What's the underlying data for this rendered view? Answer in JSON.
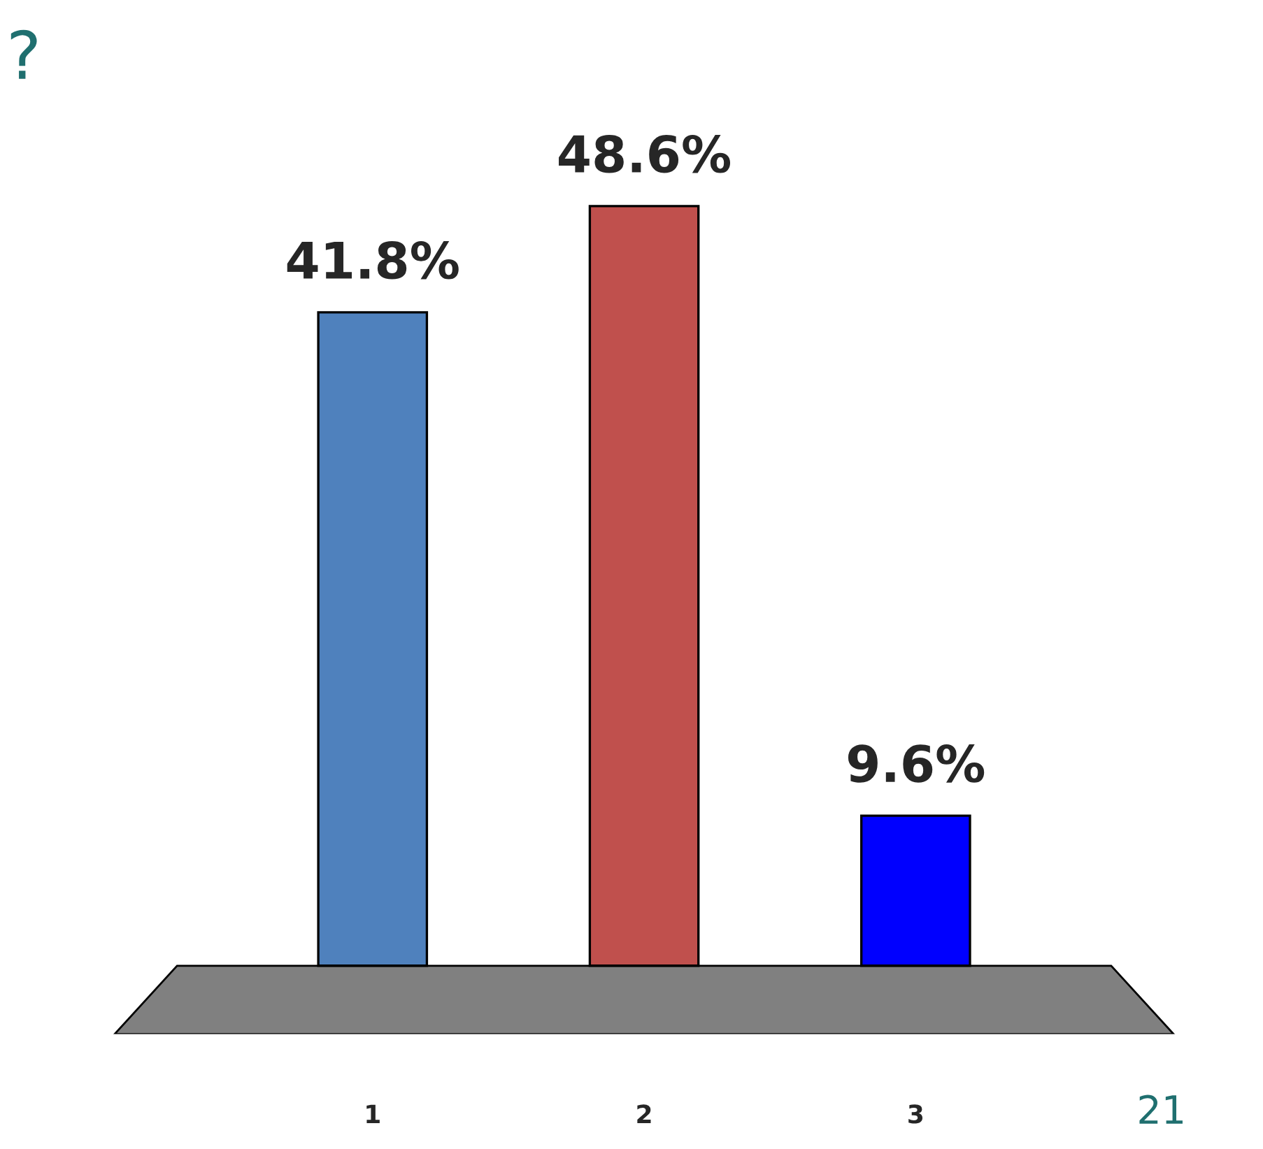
{
  "chart_data": {
    "type": "bar",
    "categories": [
      "1",
      "2",
      "3"
    ],
    "values": [
      41.8,
      48.6,
      9.6
    ],
    "colors": [
      "#4f81bd",
      "#c0504d",
      "#0000ff"
    ],
    "value_labels": [
      "41.8%",
      "48.6%",
      "9.6%"
    ],
    "annotations": [
      "?",
      "21"
    ]
  }
}
